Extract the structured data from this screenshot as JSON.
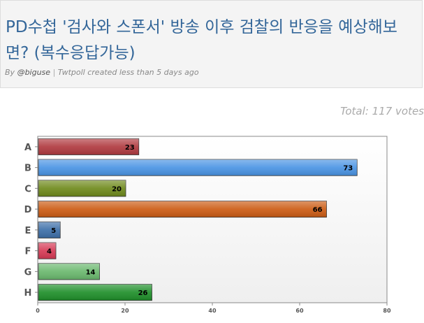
{
  "poll": {
    "title": "PD수첩 '검사와 스폰서' 방송 이후 검찰의 반응을 예상해보면? (복수응답가능)",
    "by_label": "By",
    "author": "@biguse",
    "separator": "|",
    "created": "Twtpoll created less than 5 days ago",
    "total": "Total: 117 votes"
  },
  "colors": {
    "title": "#336699",
    "bars": [
      "#b03a3f",
      "#4a94e4",
      "#6f8a1c",
      "#cc5c14",
      "#3d6fa8",
      "#d63a55",
      "#6ab86e",
      "#1f8f2a"
    ]
  },
  "chart_data": {
    "type": "bar",
    "orientation": "horizontal",
    "categories": [
      "A",
      "B",
      "C",
      "D",
      "E",
      "F",
      "G",
      "H"
    ],
    "values": [
      23,
      73,
      20,
      66,
      5,
      4,
      14,
      26
    ],
    "xlim": [
      0,
      80
    ],
    "xticks": [
      0,
      20,
      40,
      60,
      80
    ],
    "title": "",
    "xlabel": "",
    "ylabel": "",
    "grid": false,
    "data_labels": true
  }
}
